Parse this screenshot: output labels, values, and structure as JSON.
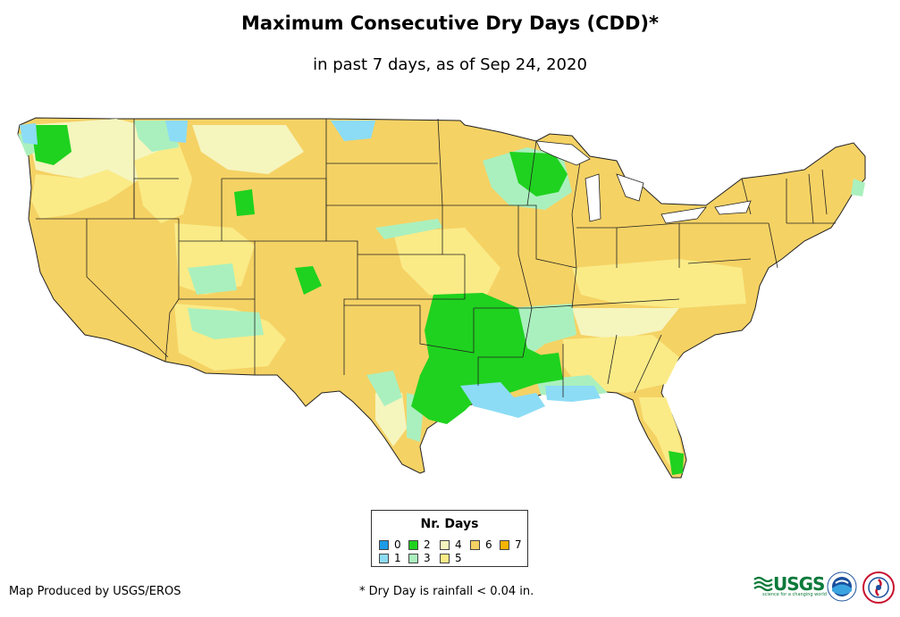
{
  "title": "Maximum Consecutive Dry Days (CDD)*",
  "subtitle": "in past 7 days, as of Sep 24, 2020",
  "legend": {
    "title": "Nr. Days",
    "items": [
      {
        "label": "0",
        "color": "#1e9be6"
      },
      {
        "label": "1",
        "color": "#8cdcf5"
      },
      {
        "label": "2",
        "color": "#1fd21f"
      },
      {
        "label": "3",
        "color": "#aaf0be"
      },
      {
        "label": "4",
        "color": "#f5f5be"
      },
      {
        "label": "5",
        "color": "#faeb87"
      },
      {
        "label": "6",
        "color": "#f5d264"
      },
      {
        "label": "7",
        "color": "#f5b400"
      }
    ]
  },
  "footer": {
    "credit": "Map Produced by USGS/EROS",
    "footnote": "* Dry Day is rainfall < 0.04 in.",
    "logo_text": "USGS",
    "logo_tagline": "science for a changing world"
  },
  "colors": {
    "days_0": "#1e9be6",
    "days_1": "#8cdcf5",
    "days_2": "#1fd21f",
    "days_3": "#aaf0be",
    "days_4": "#f5f5be",
    "days_5": "#faeb87",
    "days_6": "#f5d264",
    "days_7": "#f5b400",
    "border": "#222222"
  },
  "icons": [
    "usgs-logo",
    "noaa-logo",
    "nws-logo"
  ]
}
